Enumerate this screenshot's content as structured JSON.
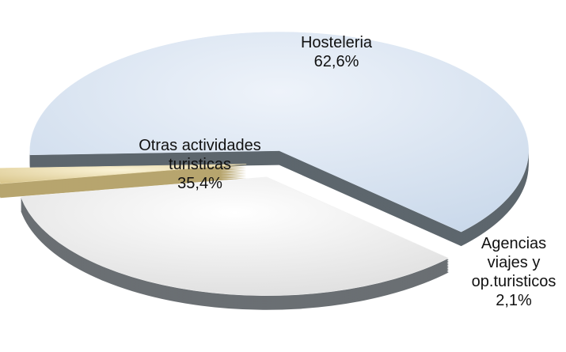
{
  "chart_data": {
    "type": "pie",
    "categories": [
      "Hosteleria",
      "Otras actividades turisticas",
      "Agencias viajes y op.turisticos"
    ],
    "values": [
      62.6,
      35.4,
      2.1
    ],
    "value_labels": [
      "62,6%",
      "35,4%",
      "2,1%"
    ],
    "colors": [
      "#dde7f3",
      "#f2f2f2",
      "#efe2b8"
    ],
    "side_colors": [
      "#5d666d",
      "#6a6f73",
      "#b7a56e"
    ]
  }
}
